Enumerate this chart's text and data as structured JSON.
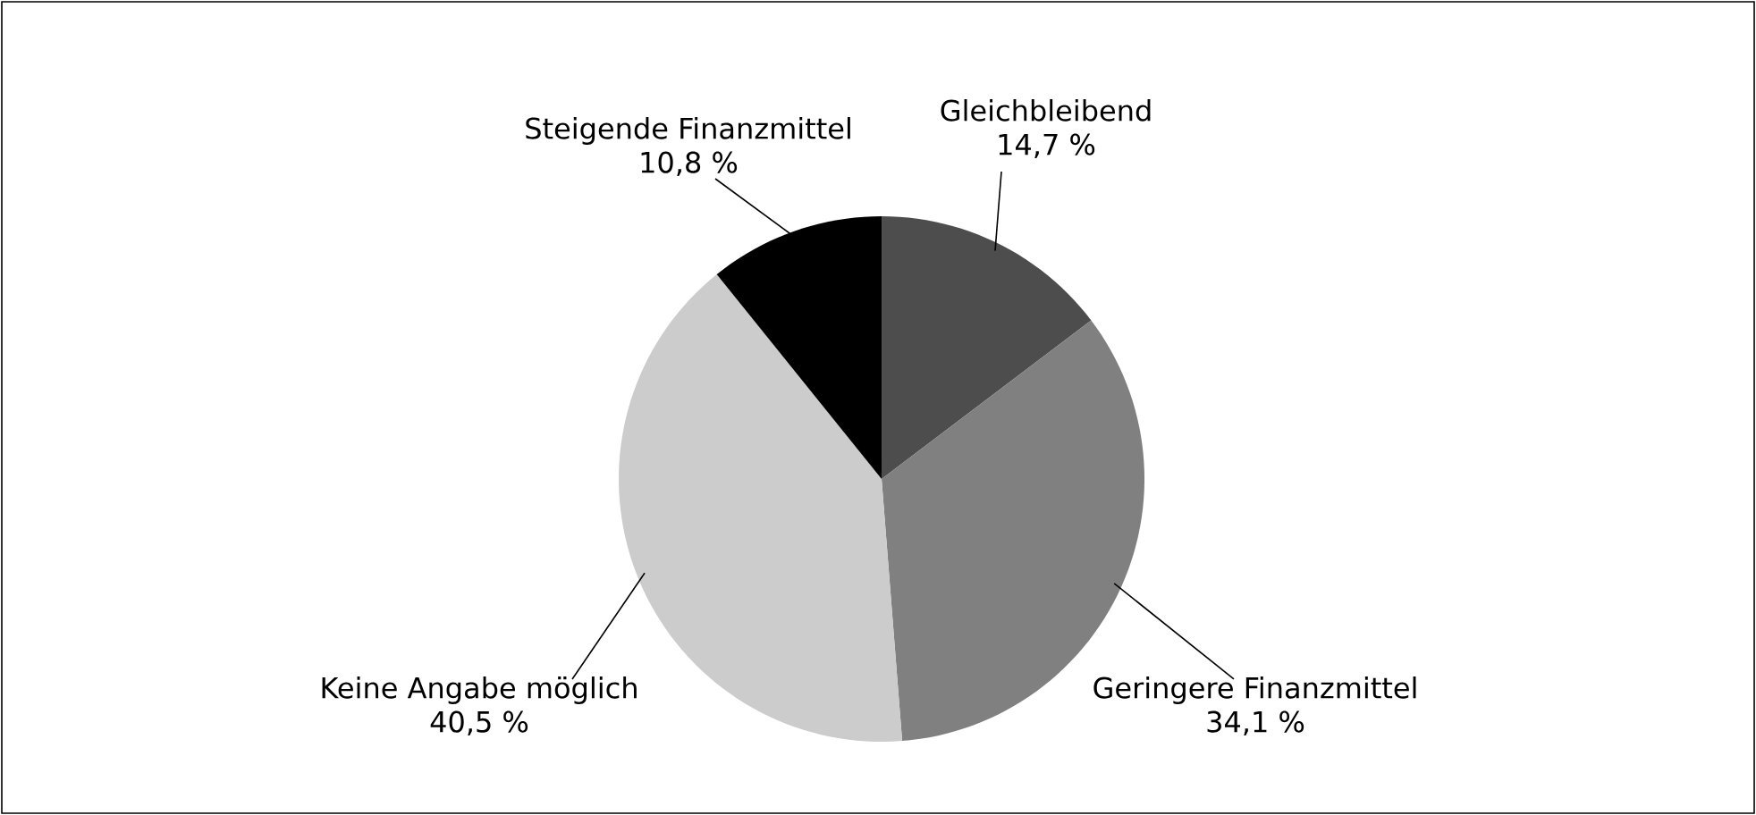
{
  "chart_data": {
    "type": "pie",
    "categories": [
      "Gleichbleibend",
      "Geringere Finanzmittel",
      "Keine Angabe möglich",
      "Steigende Finanzmittel"
    ],
    "values": [
      14.7,
      34.1,
      40.5,
      10.8
    ],
    "colors": [
      "#4d4d4d",
      "#808080",
      "#cccccc",
      "#000000"
    ],
    "value_labels": [
      "14,7 %",
      "34,1 %",
      "40,5 %",
      "10,8 %"
    ]
  }
}
